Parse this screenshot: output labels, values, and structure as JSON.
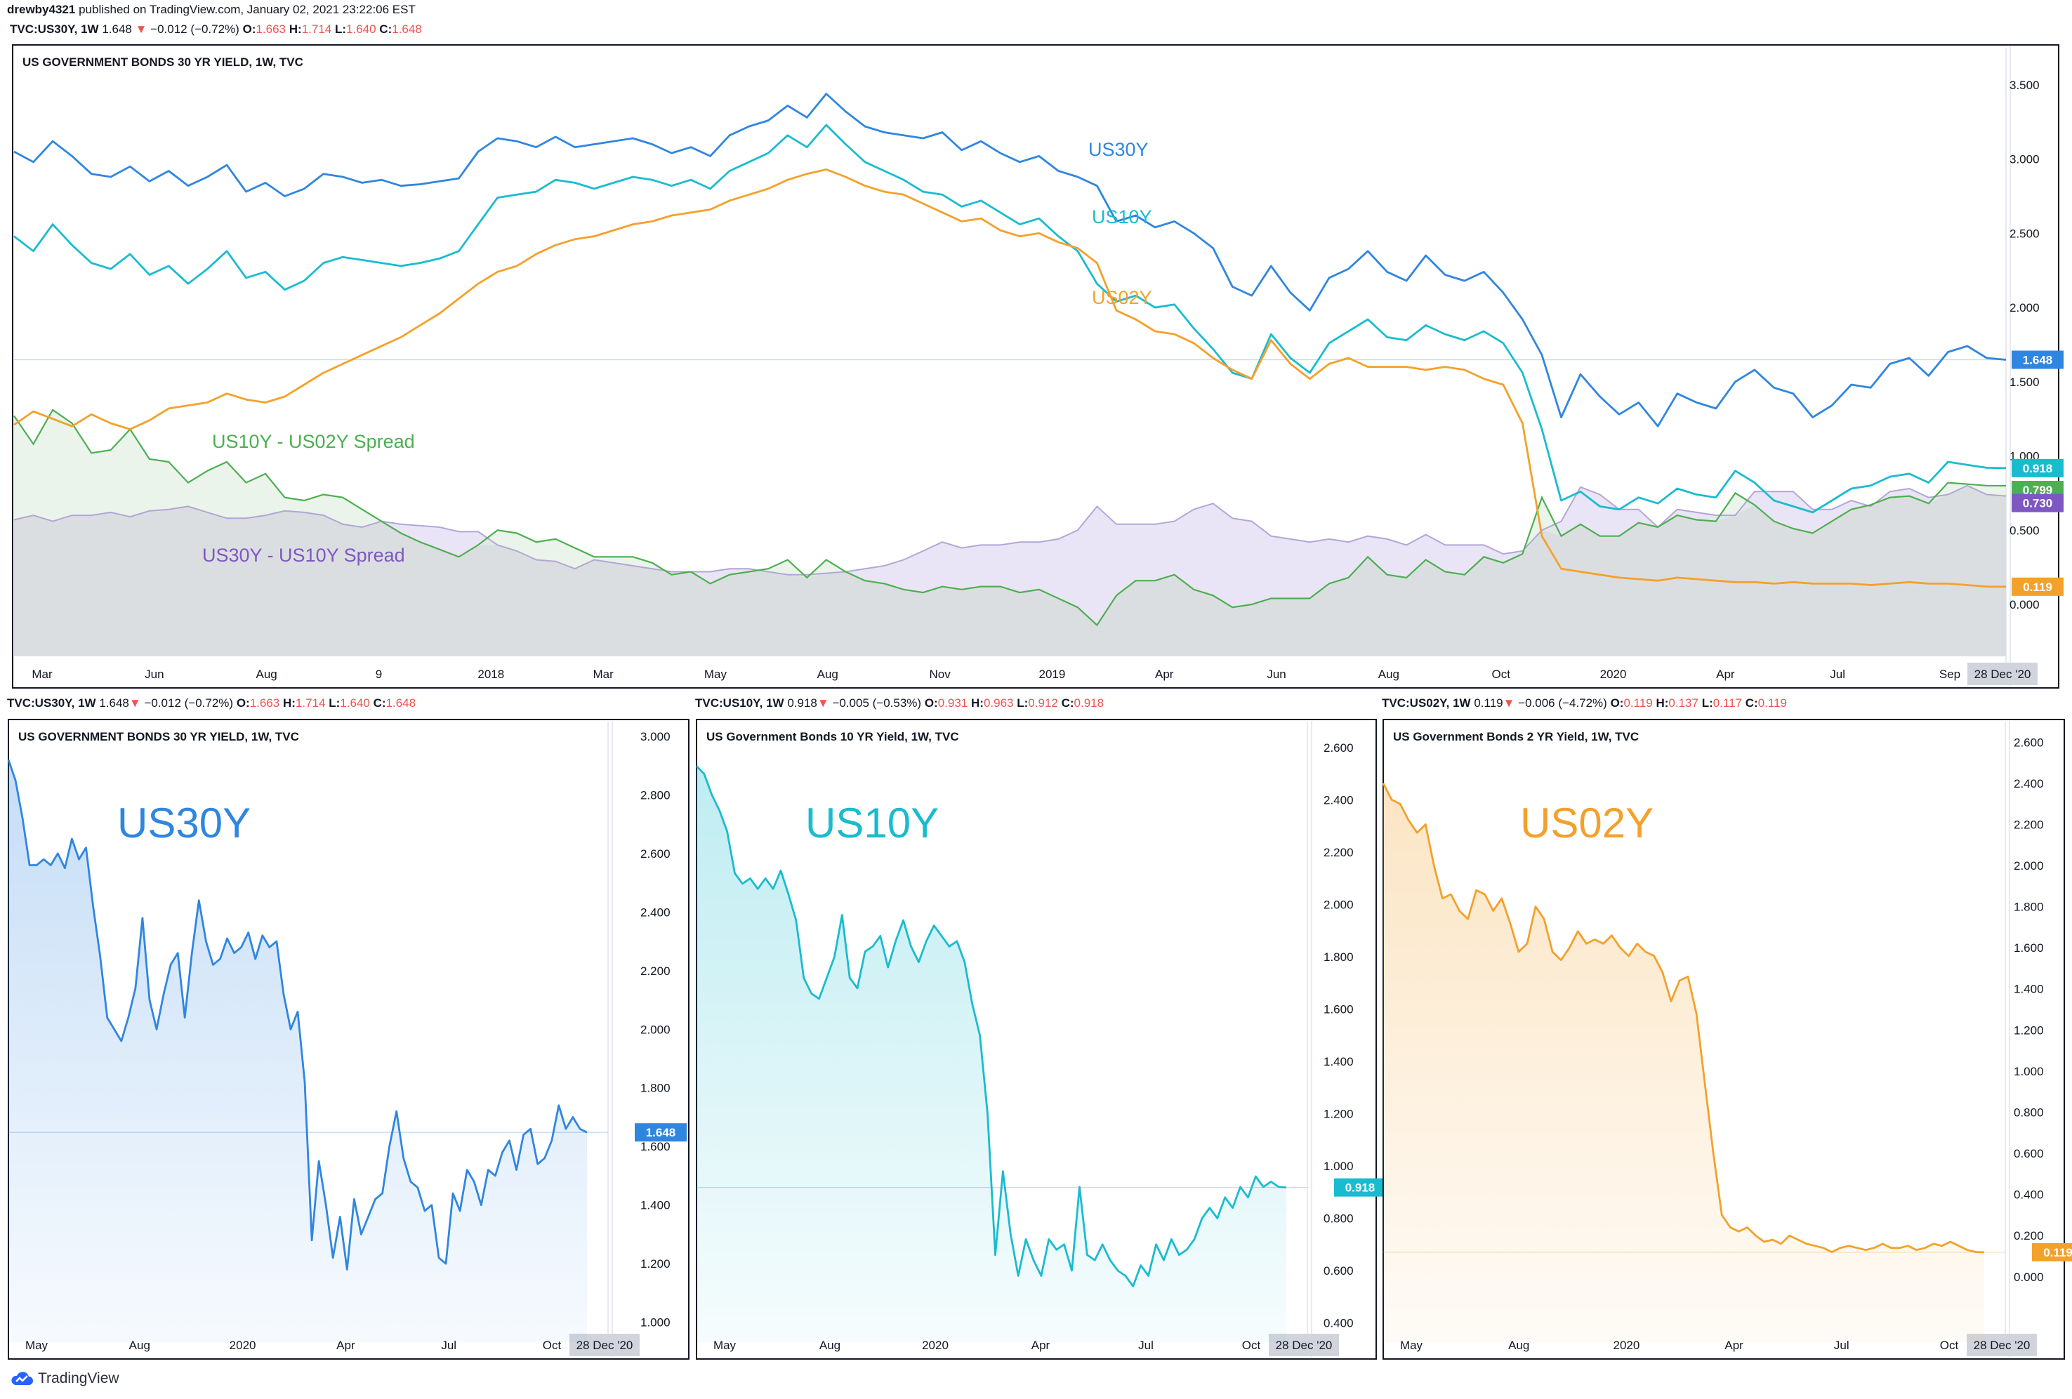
{
  "header": {
    "author": "drewby4321",
    "published": "published on TradingView.com, January 02, 2021 23:22:06 EST"
  },
  "ohlc": {
    "us30y": {
      "sym": "TVC:US30Y, 1W",
      "last": "1.648",
      "chg": "−0.012 (−0.72%)",
      "o": "1.663",
      "h": "1.714",
      "l": "1.640",
      "c": "1.648"
    },
    "us10y": {
      "sym": "TVC:US10Y, 1W",
      "last": "0.918",
      "chg": "−0.005 (−0.53%)",
      "o": "0.931",
      "h": "0.963",
      "l": "0.912",
      "c": "0.918"
    },
    "us02y": {
      "sym": "TVC:US02Y, 1W",
      "last": "0.119",
      "chg": "−0.006 (−4.72%)",
      "o": "0.119",
      "h": "0.137",
      "l": "0.117",
      "c": "0.119"
    }
  },
  "labels": {
    "o": "O:",
    "h": "H:",
    "l": "L:",
    "c": "C:"
  },
  "footer": {
    "brand": "TradingView"
  },
  "colors": {
    "us30y": "#2f86e0",
    "us10y": "#19bccf",
    "us02y": "#f3a12a",
    "spread1": "#4caf50",
    "spread2": "#7e57c2",
    "up": "#26a69a",
    "down": "#ef5350"
  },
  "chart_data": [
    {
      "type": "line",
      "title": "US GOVERNMENT BONDS 30 YR YIELD, 1W, TVC",
      "ylim": [
        -0.35,
        3.75
      ],
      "yticks": [
        "3.500",
        "3.000",
        "2.500",
        "2.000",
        "1.500",
        "1.000",
        "0.500",
        "0.000"
      ],
      "xticks": [
        "Mar",
        "Jun",
        "Aug",
        "9",
        "2018",
        "Mar",
        "May",
        "Aug",
        "Nov",
        "2019",
        "Apr",
        "Jun",
        "Aug",
        "Oct",
        "2020",
        "Apr",
        "Jul",
        "Sep"
      ],
      "date_label": "28 Dec '20",
      "annotations": [
        "US30Y",
        "US10Y",
        "US02Y",
        "US10Y - US02Y Spread",
        "US30Y - US10Y Spread"
      ],
      "series": [
        {
          "name": "US30Y",
          "values": [
            3.05,
            2.98,
            3.12,
            3.02,
            2.9,
            2.88,
            2.95,
            2.85,
            2.92,
            2.82,
            2.88,
            2.96,
            2.78,
            2.84,
            2.75,
            2.8,
            2.9,
            2.88,
            2.84,
            2.86,
            2.82,
            2.83,
            2.85,
            2.87,
            3.05,
            3.14,
            3.12,
            3.08,
            3.15,
            3.08,
            3.1,
            3.12,
            3.14,
            3.1,
            3.04,
            3.08,
            3.02,
            3.16,
            3.22,
            3.26,
            3.36,
            3.28,
            3.44,
            3.32,
            3.22,
            3.18,
            3.16,
            3.14,
            3.18,
            3.06,
            3.12,
            3.04,
            2.98,
            3.02,
            2.92,
            2.88,
            2.82,
            2.58,
            2.62,
            2.54,
            2.58,
            2.5,
            2.4,
            2.14,
            2.08,
            2.28,
            2.1,
            1.98,
            2.2,
            2.26,
            2.38,
            2.24,
            2.18,
            2.35,
            2.22,
            2.18,
            2.24,
            2.1,
            1.92,
            1.68,
            1.26,
            1.55,
            1.4,
            1.28,
            1.36,
            1.2,
            1.42,
            1.36,
            1.32,
            1.5,
            1.58,
            1.46,
            1.42,
            1.26,
            1.34,
            1.48,
            1.46,
            1.62,
            1.66,
            1.54,
            1.7,
            1.74,
            1.66,
            1.648
          ]
        },
        {
          "name": "US10Y",
          "values": [
            2.48,
            2.38,
            2.56,
            2.42,
            2.3,
            2.26,
            2.36,
            2.22,
            2.28,
            2.16,
            2.26,
            2.38,
            2.2,
            2.24,
            2.12,
            2.18,
            2.3,
            2.34,
            2.32,
            2.3,
            2.28,
            2.3,
            2.33,
            2.38,
            2.56,
            2.74,
            2.76,
            2.78,
            2.86,
            2.84,
            2.8,
            2.84,
            2.88,
            2.86,
            2.82,
            2.86,
            2.8,
            2.92,
            2.98,
            3.04,
            3.16,
            3.08,
            3.23,
            3.1,
            2.98,
            2.92,
            2.86,
            2.78,
            2.76,
            2.68,
            2.72,
            2.64,
            2.56,
            2.6,
            2.48,
            2.38,
            2.16,
            2.04,
            2.08,
            2.0,
            2.02,
            1.86,
            1.72,
            1.56,
            1.52,
            1.82,
            1.66,
            1.56,
            1.76,
            1.84,
            1.92,
            1.8,
            1.78,
            1.88,
            1.82,
            1.78,
            1.84,
            1.76,
            1.56,
            1.18,
            0.7,
            0.76,
            0.66,
            0.64,
            0.72,
            0.68,
            0.78,
            0.74,
            0.72,
            0.9,
            0.82,
            0.7,
            0.66,
            0.62,
            0.7,
            0.78,
            0.8,
            0.86,
            0.88,
            0.82,
            0.96,
            0.94,
            0.92,
            0.918
          ]
        },
        {
          "name": "US02Y",
          "values": [
            1.21,
            1.3,
            1.25,
            1.2,
            1.28,
            1.22,
            1.18,
            1.24,
            1.32,
            1.34,
            1.36,
            1.42,
            1.38,
            1.36,
            1.4,
            1.48,
            1.56,
            1.62,
            1.68,
            1.74,
            1.8,
            1.88,
            1.96,
            2.06,
            2.16,
            2.24,
            2.28,
            2.36,
            2.42,
            2.46,
            2.48,
            2.52,
            2.56,
            2.58,
            2.62,
            2.64,
            2.66,
            2.72,
            2.76,
            2.8,
            2.86,
            2.9,
            2.93,
            2.88,
            2.82,
            2.78,
            2.76,
            2.7,
            2.64,
            2.58,
            2.6,
            2.52,
            2.48,
            2.5,
            2.44,
            2.4,
            2.3,
            1.98,
            1.92,
            1.84,
            1.82,
            1.76,
            1.66,
            1.58,
            1.52,
            1.78,
            1.62,
            1.52,
            1.62,
            1.66,
            1.6,
            1.6,
            1.6,
            1.58,
            1.6,
            1.58,
            1.52,
            1.48,
            1.22,
            0.46,
            0.24,
            0.22,
            0.2,
            0.18,
            0.17,
            0.16,
            0.18,
            0.17,
            0.16,
            0.15,
            0.15,
            0.14,
            0.15,
            0.14,
            0.14,
            0.14,
            0.13,
            0.14,
            0.15,
            0.14,
            0.14,
            0.13,
            0.12,
            0.119
          ]
        }
      ]
    },
    {
      "type": "line",
      "title": "US GOVERNMENT BONDS 30 YR YIELD, 1W, TVC",
      "annotation": "US30Y",
      "ylim": [
        0.98,
        3.05
      ],
      "yticks": [
        "3.000",
        "2.800",
        "2.600",
        "2.400",
        "2.200",
        "2.000",
        "1.800",
        "1.600",
        "1.400",
        "1.200",
        "1.000"
      ],
      "xticks": [
        "May",
        "Aug",
        "2020",
        "Apr",
        "Jul",
        "Oct"
      ],
      "date_label": "28 Dec '20",
      "series": [
        {
          "name": "US30Y",
          "values": [
            2.92,
            2.85,
            2.72,
            2.56,
            2.56,
            2.58,
            2.56,
            2.6,
            2.55,
            2.65,
            2.58,
            2.62,
            2.42,
            2.25,
            2.04,
            2.0,
            1.96,
            2.04,
            2.14,
            2.38,
            2.1,
            2.0,
            2.12,
            2.22,
            2.26,
            2.04,
            2.26,
            2.44,
            2.3,
            2.22,
            2.24,
            2.31,
            2.26,
            2.28,
            2.33,
            2.24,
            2.32,
            2.28,
            2.3,
            2.12,
            2.0,
            2.06,
            1.82,
            1.28,
            1.55,
            1.4,
            1.22,
            1.36,
            1.18,
            1.42,
            1.3,
            1.36,
            1.42,
            1.44,
            1.6,
            1.72,
            1.56,
            1.48,
            1.46,
            1.38,
            1.4,
            1.22,
            1.2,
            1.44,
            1.38,
            1.52,
            1.48,
            1.4,
            1.52,
            1.5,
            1.58,
            1.62,
            1.52,
            1.64,
            1.66,
            1.54,
            1.56,
            1.62,
            1.74,
            1.66,
            1.7,
            1.66,
            1.648
          ]
        }
      ]
    },
    {
      "type": "line",
      "title": "US Government Bonds 10 YR Yield, 1W, TVC",
      "annotation": "US10Y",
      "ylim": [
        0.38,
        2.7
      ],
      "yticks": [
        "2.600",
        "2.400",
        "2.200",
        "2.000",
        "1.800",
        "1.600",
        "1.400",
        "1.200",
        "1.000",
        "0.800",
        "0.600",
        "0.400"
      ],
      "xticks": [
        "May",
        "Aug",
        "2020",
        "Apr",
        "Jul",
        "Oct"
      ],
      "date_label": "28 Dec '20",
      "series": [
        {
          "name": "US10Y",
          "values": [
            2.53,
            2.5,
            2.42,
            2.36,
            2.28,
            2.12,
            2.08,
            2.1,
            2.06,
            2.1,
            2.06,
            2.13,
            2.04,
            1.94,
            1.72,
            1.66,
            1.64,
            1.72,
            1.8,
            1.96,
            1.72,
            1.68,
            1.82,
            1.84,
            1.88,
            1.76,
            1.86,
            1.94,
            1.84,
            1.78,
            1.86,
            1.92,
            1.88,
            1.84,
            1.86,
            1.78,
            1.62,
            1.5,
            1.2,
            0.66,
            0.98,
            0.74,
            0.58,
            0.72,
            0.64,
            0.58,
            0.72,
            0.68,
            0.7,
            0.6,
            0.92,
            0.66,
            0.64,
            0.7,
            0.64,
            0.6,
            0.58,
            0.54,
            0.62,
            0.58,
            0.7,
            0.64,
            0.72,
            0.66,
            0.68,
            0.72,
            0.8,
            0.84,
            0.8,
            0.88,
            0.84,
            0.92,
            0.88,
            0.96,
            0.92,
            0.94,
            0.92,
            0.918
          ]
        }
      ]
    },
    {
      "type": "line",
      "title": "US Government Bonds 2 YR Yield, 1W, TVC",
      "annotation": "US02Y",
      "ylim": [
        -0.25,
        2.7
      ],
      "yticks": [
        "2.600",
        "2.400",
        "2.200",
        "2.000",
        "1.800",
        "1.600",
        "1.400",
        "1.200",
        "1.000",
        "0.800",
        "0.600",
        "0.400",
        "0.200",
        "0.000"
      ],
      "xticks": [
        "May",
        "Aug",
        "2020",
        "Apr",
        "Jul",
        "Oct"
      ],
      "date_label": "28 Dec '20",
      "series": [
        {
          "name": "US02Y",
          "values": [
            2.4,
            2.32,
            2.3,
            2.22,
            2.16,
            2.2,
            2.0,
            1.84,
            1.86,
            1.78,
            1.74,
            1.88,
            1.86,
            1.78,
            1.84,
            1.72,
            1.58,
            1.62,
            1.8,
            1.74,
            1.58,
            1.54,
            1.6,
            1.68,
            1.62,
            1.64,
            1.62,
            1.66,
            1.6,
            1.56,
            1.62,
            1.58,
            1.56,
            1.48,
            1.34,
            1.44,
            1.46,
            1.28,
            0.94,
            0.6,
            0.3,
            0.24,
            0.22,
            0.24,
            0.2,
            0.17,
            0.18,
            0.16,
            0.2,
            0.18,
            0.16,
            0.15,
            0.14,
            0.12,
            0.14,
            0.15,
            0.14,
            0.13,
            0.14,
            0.16,
            0.14,
            0.14,
            0.15,
            0.13,
            0.14,
            0.16,
            0.15,
            0.17,
            0.15,
            0.13,
            0.12,
            0.119
          ]
        }
      ]
    }
  ],
  "spreads": [
    {
      "name": "US10Y - US02Y Spread",
      "values": [
        1.27,
        1.08,
        1.31,
        1.22,
        1.02,
        1.04,
        1.18,
        0.98,
        0.96,
        0.82,
        0.9,
        0.96,
        0.82,
        0.88,
        0.72,
        0.7,
        0.74,
        0.72,
        0.64,
        0.56,
        0.48,
        0.42,
        0.37,
        0.32,
        0.4,
        0.5,
        0.48,
        0.42,
        0.44,
        0.38,
        0.32,
        0.32,
        0.32,
        0.28,
        0.2,
        0.22,
        0.14,
        0.2,
        0.22,
        0.24,
        0.3,
        0.18,
        0.3,
        0.22,
        0.16,
        0.14,
        0.1,
        0.08,
        0.12,
        0.1,
        0.12,
        0.12,
        0.08,
        0.1,
        0.04,
        -0.02,
        -0.14,
        0.06,
        0.16,
        0.16,
        0.2,
        0.1,
        0.06,
        -0.02,
        0.0,
        0.04,
        0.04,
        0.04,
        0.14,
        0.18,
        0.32,
        0.2,
        0.18,
        0.3,
        0.22,
        0.2,
        0.32,
        0.28,
        0.34,
        0.72,
        0.46,
        0.54,
        0.46,
        0.46,
        0.55,
        0.52,
        0.6,
        0.57,
        0.56,
        0.75,
        0.67,
        0.56,
        0.51,
        0.48,
        0.56,
        0.64,
        0.67,
        0.72,
        0.73,
        0.68,
        0.82,
        0.81,
        0.8,
        0.799
      ]
    },
    {
      "name": "US30Y - US10Y Spread",
      "values": [
        0.57,
        0.6,
        0.56,
        0.6,
        0.6,
        0.62,
        0.59,
        0.63,
        0.64,
        0.66,
        0.62,
        0.58,
        0.58,
        0.6,
        0.63,
        0.62,
        0.6,
        0.54,
        0.52,
        0.56,
        0.54,
        0.53,
        0.52,
        0.49,
        0.49,
        0.4,
        0.36,
        0.3,
        0.29,
        0.24,
        0.3,
        0.28,
        0.26,
        0.24,
        0.22,
        0.22,
        0.22,
        0.24,
        0.24,
        0.22,
        0.2,
        0.2,
        0.21,
        0.22,
        0.24,
        0.26,
        0.3,
        0.36,
        0.42,
        0.38,
        0.4,
        0.4,
        0.42,
        0.42,
        0.44,
        0.5,
        0.66,
        0.54,
        0.54,
        0.54,
        0.56,
        0.64,
        0.68,
        0.58,
        0.56,
        0.46,
        0.44,
        0.42,
        0.44,
        0.42,
        0.46,
        0.44,
        0.4,
        0.47,
        0.4,
        0.4,
        0.4,
        0.34,
        0.36,
        0.5,
        0.56,
        0.79,
        0.74,
        0.64,
        0.64,
        0.52,
        0.64,
        0.62,
        0.6,
        0.6,
        0.76,
        0.76,
        0.76,
        0.64,
        0.64,
        0.7,
        0.66,
        0.76,
        0.78,
        0.72,
        0.74,
        0.8,
        0.74,
        0.73
      ]
    }
  ],
  "price_tags": [
    {
      "text": "1.648",
      "color": "#2f86e0"
    },
    {
      "text": "0.918",
      "color": "#19bccf"
    },
    {
      "text": "0.799",
      "color": "#4caf50"
    },
    {
      "text": "0.730",
      "color": "#7e57c2"
    },
    {
      "text": "0.119",
      "color": "#f3a12a"
    }
  ]
}
